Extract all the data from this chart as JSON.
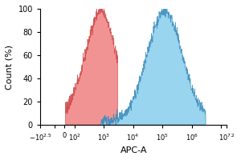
{
  "title": "",
  "xlabel": "APC-A",
  "ylabel": "Count (%)",
  "ylim": [
    0,
    100
  ],
  "yticks": [
    0,
    20,
    40,
    60,
    80,
    100
  ],
  "background_color": "#ffffff",
  "red_color": "#f08080",
  "red_edge_color": "#cc4444",
  "blue_color": "#87ceeb",
  "blue_edge_color": "#3388bb",
  "red_peak_x": 800,
  "blue_peak_x": 120000,
  "xlim_min": -316,
  "xlim_max": 15848931,
  "x_tick_positions": [
    -316,
    0,
    100,
    1000,
    10000,
    100000,
    1000000,
    15848931
  ],
  "x_tick_labels": [
    "$-10^{2.5}$",
    "0",
    "$10^2$",
    "$10^3$",
    "$10^4$",
    "$10^5$",
    "$10^6$",
    "$10^{7.2}$"
  ]
}
